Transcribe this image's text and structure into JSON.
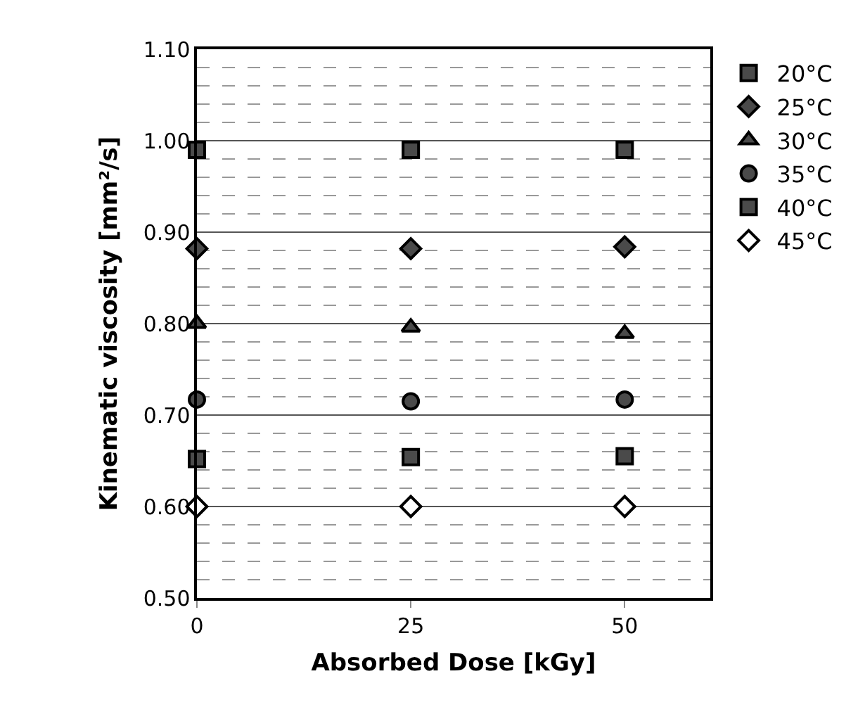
{
  "chart_data": {
    "type": "scatter",
    "xlabel": "Absorbed Dose [kGy]",
    "ylabel": "Kinematic viscosity [mm²/s]",
    "x": [
      0,
      25,
      50
    ],
    "xlim": [
      0,
      60
    ],
    "xticks": [
      0,
      25,
      50
    ],
    "ylim": [
      0.5,
      1.1
    ],
    "yticks": [
      {
        "value": 0.5,
        "label": "0.50"
      },
      {
        "value": 0.6,
        "label": "0.60"
      },
      {
        "value": 0.7,
        "label": "0.70"
      },
      {
        "value": 0.8,
        "label": "0.80"
      },
      {
        "value": 0.9,
        "label": "0.90"
      },
      {
        "value": 1.0,
        "label": "1.00"
      },
      {
        "value": 1.1,
        "label": "1.10"
      }
    ],
    "grid": "y",
    "legend": "top right",
    "series": [
      {
        "name": "20°C",
        "color": "#4a4a4a",
        "marker": "square",
        "values": [
          0.99,
          0.99,
          0.99
        ]
      },
      {
        "name": "25°C",
        "color": "#4a4a4a",
        "marker": "diamond",
        "values": [
          0.882,
          0.882,
          0.884
        ]
      },
      {
        "name": "30°C",
        "color": "#4a4a4a",
        "marker": "triangle",
        "values": [
          0.8,
          0.796,
          0.789
        ]
      },
      {
        "name": "35°C",
        "color": "#4a4a4a",
        "marker": "circle",
        "values": [
          0.717,
          0.715,
          0.717
        ]
      },
      {
        "name": "40°C",
        "color": "#4a4a4a",
        "marker": "square",
        "values": [
          0.652,
          0.654,
          0.655
        ]
      },
      {
        "name": "45°C",
        "color": "#ffffff",
        "marker": "diamond",
        "values": [
          0.6,
          0.6,
          0.6
        ]
      }
    ]
  }
}
